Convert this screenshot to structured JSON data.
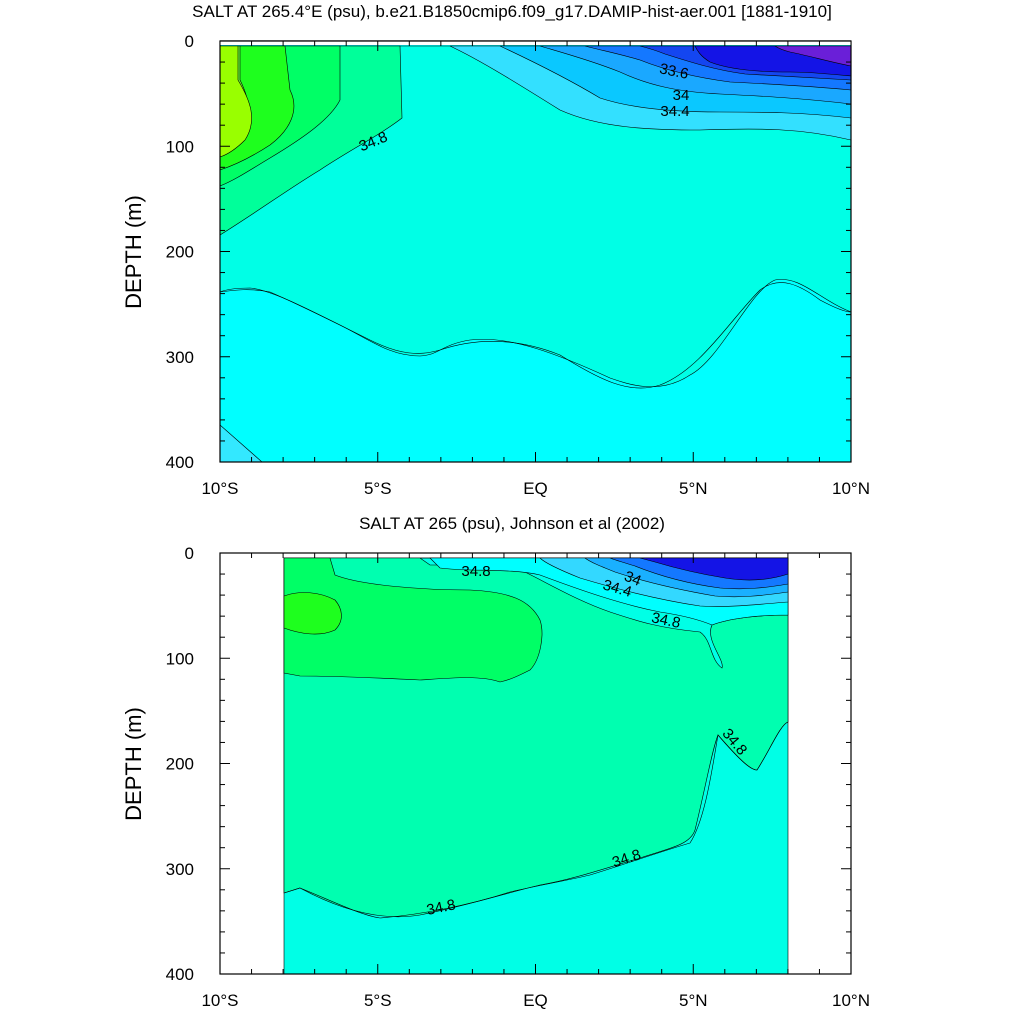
{
  "chart_data": [
    {
      "type": "contour",
      "title": "SALT AT 265.4°E (psu), b.e21.B1850cmip6.f09_g17.DAMIP-hist-aer.001 [1881-1910]",
      "ylabel": "DEPTH (m)",
      "xlim": [
        -10,
        10
      ],
      "ylim": [
        400,
        0
      ],
      "x_ticks": [
        -10,
        -5,
        0,
        5,
        10
      ],
      "x_tick_labels": [
        "10°S",
        "5°S",
        "EQ",
        "5°N",
        "10°N"
      ],
      "y_ticks": [
        0,
        100,
        200,
        300,
        400
      ],
      "y_tick_labels": [
        "0",
        "100",
        "200",
        "300",
        "400"
      ],
      "contour_labels": [
        "33.6",
        "34",
        "34.4",
        "34.8"
      ],
      "colors": {
        "fresh_violet": "#6a1fd8",
        "fresh_blue": "#1414e6",
        "mid_blue": "#1a8cff",
        "cyan": "#00ffff",
        "aqua": "#00ffe6",
        "green": "#00ff66",
        "bright_green": "#1eff1e",
        "lime": "#99ff00"
      }
    },
    {
      "type": "contour",
      "title": "SALT AT 265 (psu), Johnson et al (2002)",
      "ylabel": "DEPTH (m)",
      "xlim": [
        -10,
        10
      ],
      "ylim": [
        400,
        0
      ],
      "x_ticks": [
        -10,
        -5,
        0,
        5,
        10
      ],
      "x_tick_labels": [
        "10°S",
        "5°S",
        "EQ",
        "5°N",
        "10°N"
      ],
      "y_ticks": [
        0,
        100,
        200,
        300,
        400
      ],
      "y_tick_labels": [
        "0",
        "100",
        "200",
        "300",
        "400"
      ],
      "contour_labels": [
        "34.8",
        "34",
        "34.4",
        "34.8",
        "34.8",
        "34.8",
        "34.8"
      ],
      "colors": {
        "fresh_blue": "#1414e6",
        "mid_blue": "#1a8cff",
        "cyan": "#00ffff",
        "aqua": "#00ffe6",
        "seagreen": "#00ffb0",
        "green": "#00ff66",
        "bright_green": "#1eff1e"
      }
    }
  ]
}
